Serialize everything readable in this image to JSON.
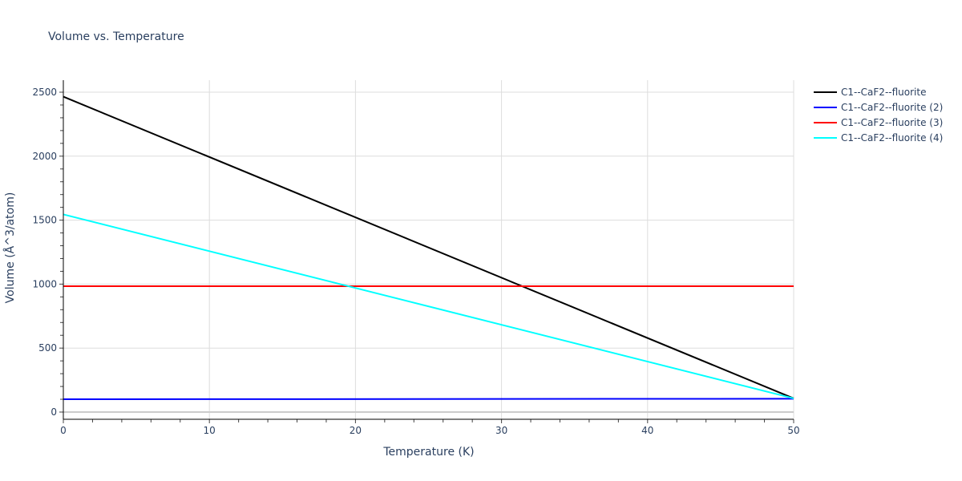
{
  "chart_data": {
    "type": "line",
    "title": "Volume vs. Temperature",
    "xlabel": "Temperature (K)",
    "ylabel": "Volume (Å^3/atom)",
    "xlim": [
      0,
      50
    ],
    "ylim": [
      -80,
      2600
    ],
    "x_ticks": [
      0,
      10,
      20,
      30,
      40,
      50
    ],
    "y_ticks": [
      0,
      500,
      1000,
      1500,
      2000,
      2500
    ],
    "grid": true,
    "legend_position": "top-right-outside",
    "x": [
      0,
      50
    ],
    "series": [
      {
        "name": "C1--CaF2--fluorite",
        "color": "#000000",
        "values": [
          2465,
          107
        ]
      },
      {
        "name": "C1--CaF2--fluorite (2)",
        "color": "#0000ff",
        "values": [
          100,
          104
        ]
      },
      {
        "name": "C1--CaF2--fluorite (3)",
        "color": "#ff0000",
        "values": [
          984,
          984
        ]
      },
      {
        "name": "C1--CaF2--fluorite (4)",
        "color": "#00ffff",
        "values": [
          1545,
          107
        ]
      }
    ]
  }
}
